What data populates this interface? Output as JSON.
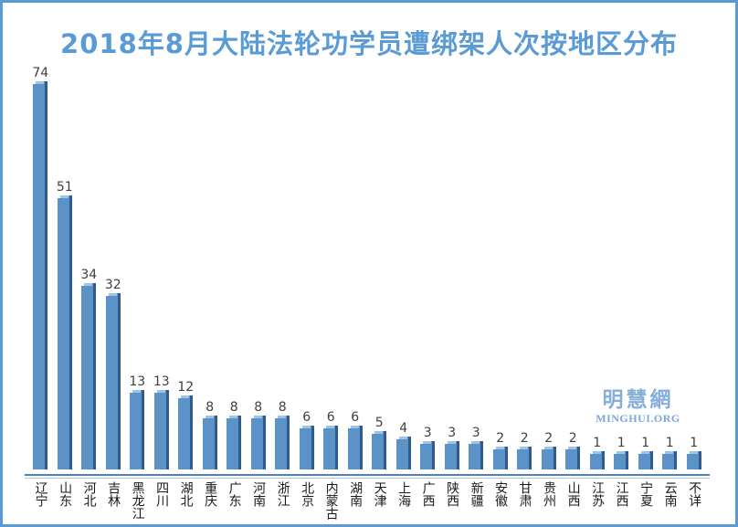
{
  "title": "2018年8月大陆法轮功学员遭绑架人次按地区分布",
  "watermark": {
    "name": "明慧網",
    "url": "MINGHUI.ORG"
  },
  "colors": {
    "frame_border": "#5b9bd5",
    "title": "#5b9bd5",
    "bar_face": "#5b93c8",
    "bar_side": "#2f5b8e",
    "bar_top_highlight": "#9dc3e6",
    "baseline": "#4f81bd",
    "baseline_light": "#aec7e6",
    "value_label": "#3f3f3f",
    "category_label": "#1a1a1a",
    "watermark": "#85aedb"
  },
  "chart_data": {
    "type": "bar",
    "title": "2018年8月大陆法轮功学员遭绑架人次按地区分布",
    "categories": [
      "辽宁",
      "山东",
      "河北",
      "吉林",
      "黑龙江",
      "四川",
      "湖北",
      "重庆",
      "广东",
      "河南",
      "浙江",
      "北京",
      "内蒙古",
      "湖南",
      "天津",
      "上海",
      "广西",
      "陕西",
      "新疆",
      "安徽",
      "甘肃",
      "贵州",
      "山西",
      "江苏",
      "江西",
      "宁夏",
      "云南",
      "不详"
    ],
    "values": [
      74,
      51,
      34,
      32,
      13,
      13,
      12,
      8,
      8,
      8,
      8,
      6,
      6,
      6,
      5,
      4,
      3,
      3,
      3,
      2,
      2,
      2,
      2,
      1,
      1,
      1,
      1,
      1
    ],
    "xlabel": "",
    "ylabel": "",
    "ylim": [
      0,
      80
    ],
    "grid": false,
    "legend": false,
    "data_labels": true,
    "style": "3d-column",
    "category_label_orientation": "vertical"
  }
}
